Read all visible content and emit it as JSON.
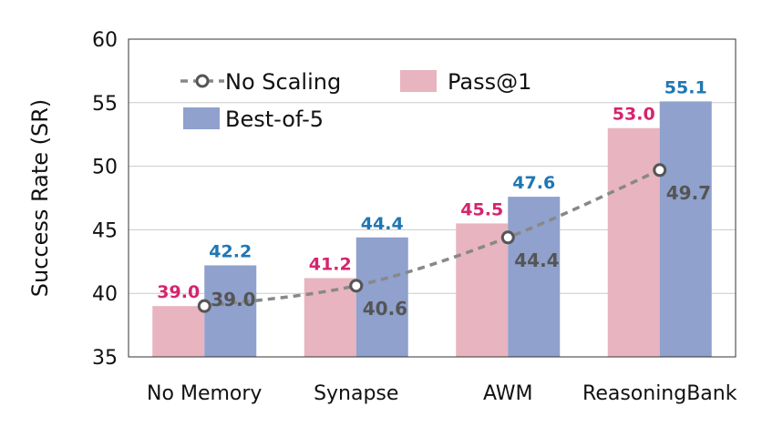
{
  "chart_data": {
    "type": "bar",
    "categories": [
      "No Memory",
      "Synapse",
      "AWM",
      "ReasoningBank"
    ],
    "series": [
      {
        "name": "Pass@1",
        "type": "bar",
        "color": "#e8b4bf",
        "label_color": "#d6246e",
        "values": [
          39.0,
          41.2,
          45.5,
          53.0
        ]
      },
      {
        "name": "Best-of-5",
        "type": "bar",
        "color": "#8fa1cc",
        "label_color": "#1f77b4",
        "values": [
          42.2,
          44.4,
          47.6,
          55.1
        ]
      },
      {
        "name": "No Scaling",
        "type": "line",
        "style": "dashed",
        "color": "#888888",
        "marker": "open-circle",
        "label_color": "#555555",
        "values": [
          39.0,
          40.6,
          44.4,
          49.7
        ]
      }
    ],
    "title": "",
    "xlabel": "",
    "ylabel": "Success Rate (SR)",
    "ylim": [
      35,
      60
    ],
    "yticks": [
      "35",
      "40",
      "45",
      "50",
      "55",
      "60"
    ],
    "data_labels": {
      "Pass@1": [
        "39.0",
        "41.2",
        "45.5",
        "53.0"
      ],
      "Best-of-5": [
        "42.2",
        "44.4",
        "47.6",
        "55.1"
      ],
      "No Scaling": [
        "39.0",
        "40.6",
        "44.4",
        "49.7"
      ]
    },
    "grid": "horizontal",
    "legend": {
      "position": "upper-left",
      "order": [
        "No Scaling",
        "Pass@1",
        "Best-of-5"
      ]
    }
  }
}
